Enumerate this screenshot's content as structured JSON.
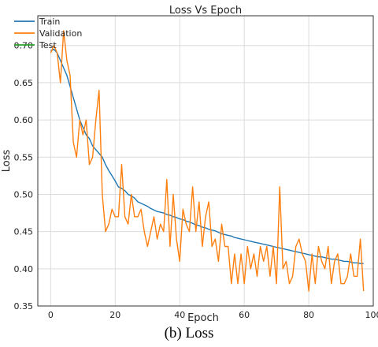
{
  "chart_data": {
    "type": "line",
    "title": "Loss Vs Epoch",
    "xlabel": "Epoch",
    "ylabel": "Loss",
    "xlim": [
      -4,
      100
    ],
    "ylim": [
      0.35,
      0.74
    ],
    "x_ticks": [
      0,
      20,
      40,
      60,
      80,
      100
    ],
    "y_ticks": [
      0.35,
      0.4,
      0.45,
      0.5,
      0.55,
      0.6,
      0.65,
      0.7
    ],
    "grid": true,
    "legend_position": "top-left",
    "series": [
      {
        "name": "Train",
        "color": "#1f77b4",
        "x": [
          0,
          1,
          2,
          3,
          4,
          5,
          6,
          7,
          8,
          9,
          10,
          11,
          12,
          13,
          14,
          15,
          16,
          17,
          18,
          19,
          20,
          21,
          22,
          23,
          24,
          25,
          26,
          27,
          28,
          29,
          30,
          31,
          32,
          33,
          34,
          35,
          36,
          37,
          38,
          39,
          40,
          41,
          42,
          43,
          44,
          45,
          46,
          47,
          48,
          49,
          50,
          51,
          52,
          53,
          54,
          55,
          56,
          57,
          58,
          59,
          60,
          61,
          62,
          63,
          64,
          65,
          66,
          67,
          68,
          69,
          70,
          71,
          72,
          73,
          74,
          75,
          76,
          77,
          78,
          79,
          80,
          81,
          82,
          83,
          84,
          85,
          86,
          87,
          88,
          89,
          90,
          91,
          92,
          93,
          94,
          95,
          96,
          97
        ],
        "values": [
          0.693,
          0.695,
          0.69,
          0.68,
          0.67,
          0.66,
          0.645,
          0.63,
          0.615,
          0.6,
          0.59,
          0.58,
          0.575,
          0.565,
          0.56,
          0.555,
          0.55,
          0.54,
          0.532,
          0.525,
          0.518,
          0.51,
          0.508,
          0.505,
          0.5,
          0.498,
          0.495,
          0.49,
          0.488,
          0.486,
          0.484,
          0.481,
          0.479,
          0.477,
          0.476,
          0.475,
          0.473,
          0.472,
          0.47,
          0.469,
          0.467,
          0.466,
          0.464,
          0.463,
          0.461,
          0.459,
          0.458,
          0.456,
          0.455,
          0.453,
          0.452,
          0.451,
          0.449,
          0.447,
          0.446,
          0.445,
          0.444,
          0.442,
          0.441,
          0.44,
          0.439,
          0.438,
          0.437,
          0.436,
          0.435,
          0.434,
          0.433,
          0.432,
          0.431,
          0.43,
          0.429,
          0.428,
          0.427,
          0.426,
          0.425,
          0.424,
          0.423,
          0.422,
          0.421,
          0.42,
          0.419,
          0.418,
          0.417,
          0.416,
          0.416,
          0.415,
          0.414,
          0.413,
          0.413,
          0.412,
          0.411,
          0.41,
          0.41,
          0.409,
          0.408,
          0.408,
          0.407,
          0.407
        ]
      },
      {
        "name": "Validation",
        "color": "#ff7f0e",
        "x": [
          0,
          1,
          2,
          3,
          4,
          5,
          6,
          7,
          8,
          9,
          10,
          11,
          12,
          13,
          14,
          15,
          16,
          17,
          18,
          19,
          20,
          21,
          22,
          23,
          24,
          25,
          26,
          27,
          28,
          29,
          30,
          31,
          32,
          33,
          34,
          35,
          36,
          37,
          38,
          39,
          40,
          41,
          42,
          43,
          44,
          45,
          46,
          47,
          48,
          49,
          50,
          51,
          52,
          53,
          54,
          55,
          56,
          57,
          58,
          59,
          60,
          61,
          62,
          63,
          64,
          65,
          66,
          67,
          68,
          69,
          70,
          71,
          72,
          73,
          74,
          75,
          76,
          77,
          78,
          79,
          80,
          81,
          82,
          83,
          84,
          85,
          86,
          87,
          88,
          89,
          90,
          91,
          92,
          93,
          94,
          95,
          96,
          97
        ],
        "values": [
          0.69,
          0.7,
          0.69,
          0.65,
          0.72,
          0.68,
          0.66,
          0.57,
          0.55,
          0.6,
          0.58,
          0.6,
          0.54,
          0.55,
          0.6,
          0.64,
          0.5,
          0.45,
          0.46,
          0.48,
          0.47,
          0.47,
          0.54,
          0.47,
          0.46,
          0.5,
          0.47,
          0.47,
          0.48,
          0.45,
          0.43,
          0.45,
          0.47,
          0.44,
          0.46,
          0.45,
          0.52,
          0.43,
          0.5,
          0.44,
          0.41,
          0.48,
          0.46,
          0.45,
          0.51,
          0.45,
          0.49,
          0.43,
          0.47,
          0.49,
          0.43,
          0.44,
          0.41,
          0.46,
          0.43,
          0.43,
          0.38,
          0.42,
          0.38,
          0.42,
          0.38,
          0.43,
          0.4,
          0.42,
          0.39,
          0.43,
          0.41,
          0.43,
          0.39,
          0.43,
          0.38,
          0.51,
          0.4,
          0.41,
          0.38,
          0.39,
          0.43,
          0.44,
          0.42,
          0.41,
          0.37,
          0.42,
          0.38,
          0.43,
          0.41,
          0.4,
          0.43,
          0.38,
          0.41,
          0.42,
          0.38,
          0.38,
          0.39,
          0.42,
          0.39,
          0.39,
          0.44,
          0.37
        ]
      },
      {
        "name": "Test",
        "color": "#2ca02c",
        "x": [],
        "values": []
      }
    ]
  },
  "caption": "(b) Loss"
}
